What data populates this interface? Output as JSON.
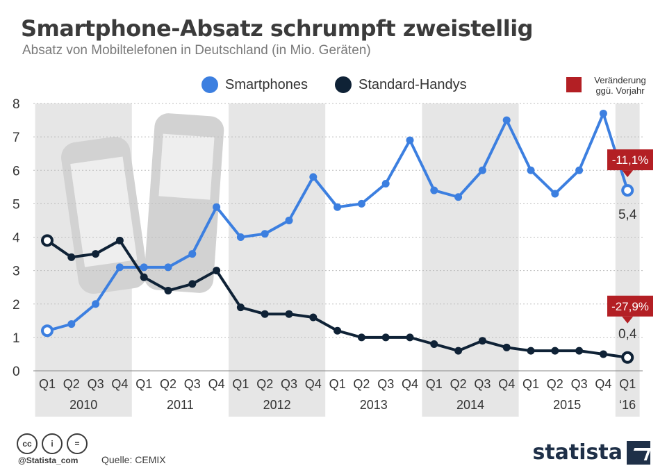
{
  "title": "Smartphone-Absatz schrumpft zweistellig",
  "subtitle": "Absatz von Mobiltelefonen in Deutschland (in Mio. Geräten)",
  "legend": {
    "smartphones": "Smartphones",
    "standard": "Standard-Handys",
    "change": "Veränderung ggü. Vorjahr"
  },
  "colors": {
    "smartphones": "#3c7fe0",
    "standard": "#0f2236",
    "change": "#b31f24",
    "band": "#e6e6e6",
    "grid": "#bdbdbd"
  },
  "footer": {
    "handle": "@Statista_com",
    "source": "Quelle: CEMIX",
    "brand": "statista",
    "license_icons": [
      "cc-icon",
      "by-icon",
      "nd-icon"
    ]
  },
  "chart_data": {
    "type": "line",
    "categories": [
      "Q1",
      "Q2",
      "Q3",
      "Q4",
      "Q1",
      "Q2",
      "Q3",
      "Q4",
      "Q1",
      "Q2",
      "Q3",
      "Q4",
      "Q1",
      "Q2",
      "Q3",
      "Q4",
      "Q1",
      "Q2",
      "Q3",
      "Q4",
      "Q1",
      "Q2",
      "Q3",
      "Q4",
      "Q1"
    ],
    "years": [
      "2010",
      "2011",
      "2012",
      "2013",
      "2014",
      "2015",
      "‘16"
    ],
    "ylim": [
      0,
      8
    ],
    "yticks": [
      "0",
      "1",
      "2",
      "3",
      "4",
      "5",
      "6",
      "7",
      "8"
    ],
    "series": [
      {
        "name": "Smartphones",
        "values": [
          1.2,
          1.4,
          2.0,
          3.1,
          3.1,
          3.1,
          3.5,
          4.9,
          4.0,
          4.1,
          4.5,
          5.8,
          4.9,
          5.0,
          5.6,
          6.9,
          5.4,
          5.2,
          6.0,
          7.5,
          6.0,
          5.3,
          6.0,
          7.7,
          5.4
        ]
      },
      {
        "name": "Standard-Handys",
        "values": [
          3.9,
          3.4,
          3.5,
          3.9,
          2.8,
          2.4,
          2.6,
          3.0,
          1.9,
          1.7,
          1.7,
          1.6,
          1.2,
          1.0,
          1.0,
          1.0,
          0.8,
          0.6,
          0.9,
          0.7,
          0.6,
          0.6,
          0.6,
          0.5,
          0.4
        ]
      }
    ],
    "annotations": [
      {
        "series": "Smartphones",
        "change": "-11,1%",
        "value_label": "5,4"
      },
      {
        "series": "Standard-Handys",
        "change": "-27,9%",
        "value_label": "0,4"
      }
    ]
  }
}
